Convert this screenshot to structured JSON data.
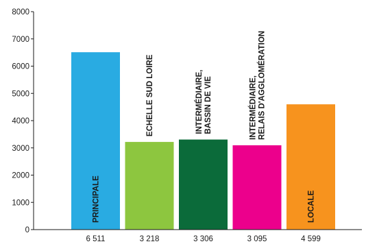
{
  "chart_data": {
    "type": "bar",
    "categories": [
      "6 511",
      "3 218",
      "3 306",
      "3 095",
      "4 599"
    ],
    "values": [
      6511,
      3218,
      3306,
      3095,
      4599
    ],
    "bar_labels": [
      [
        "PRINCIPALE"
      ],
      [
        "ECHELLE SUD LOIRE"
      ],
      [
        "INTERMÉDIAIRE,",
        "BASSIN DE VIE"
      ],
      [
        "INTERMÉDIAIRE,",
        "RELAIS D'AGGLOMÉRATION"
      ],
      [
        "LOCALE"
      ]
    ],
    "bar_label_position": [
      "inside-bottom",
      "above",
      "above",
      "above",
      "inside-bottom"
    ],
    "colors": [
      "#29abe2",
      "#8dc63f",
      "#0b6b3a",
      "#ec008c",
      "#f7931e"
    ],
    "yticks": [
      "0",
      "1000",
      "2000",
      "3000",
      "4000",
      "5000",
      "6000",
      "7000",
      "8000"
    ],
    "ylim": [
      0,
      8000
    ],
    "title": "",
    "xlabel": "",
    "ylabel": "",
    "grid": false,
    "legend": "none"
  }
}
